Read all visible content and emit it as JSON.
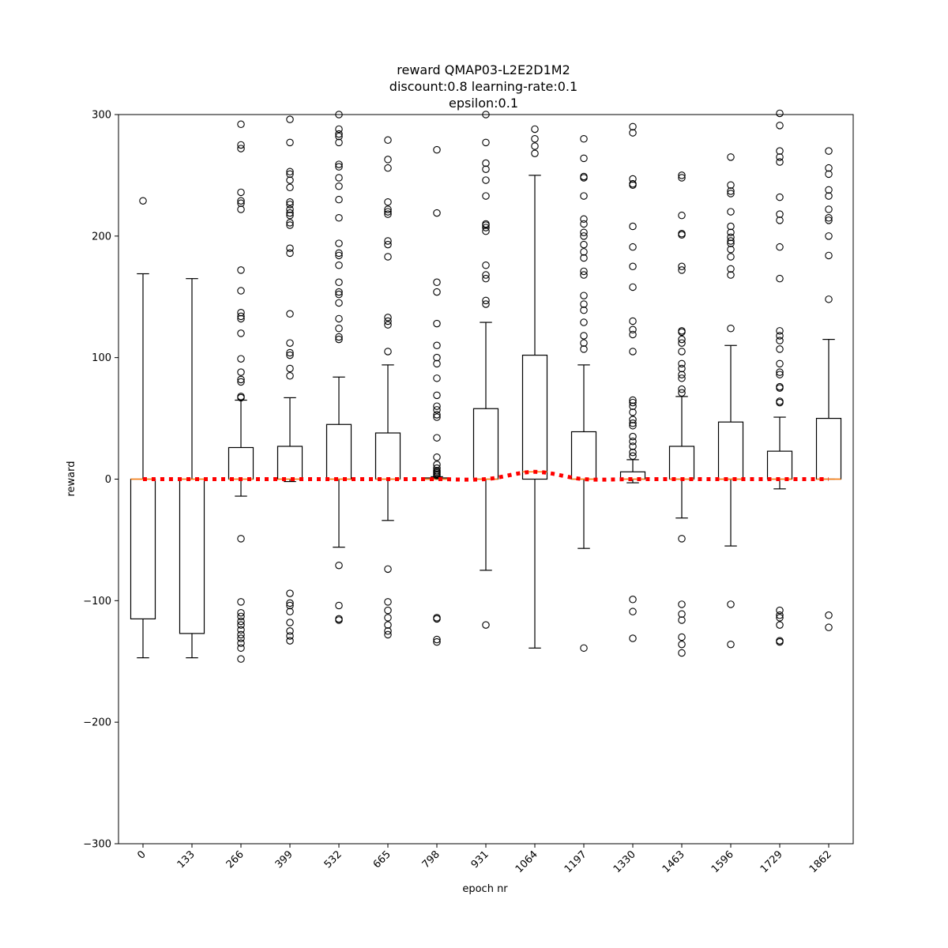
{
  "chart_data": {
    "type": "box",
    "title_lines": [
      "reward QMAP03-L2E2D1M2",
      "discount:0.8 learning-rate:0.1",
      "epsilon:0.1"
    ],
    "xlabel": "epoch nr",
    "ylabel": "reward",
    "ylim": [
      -300,
      300
    ],
    "yticks": [
      -300,
      -200,
      -100,
      0,
      100,
      200,
      300
    ],
    "ytick_labels": [
      "−300",
      "−200",
      "−100",
      "0",
      "100",
      "200",
      "300"
    ],
    "categories": [
      "0",
      "133",
      "266",
      "399",
      "532",
      "665",
      "798",
      "931",
      "1064",
      "1197",
      "1330",
      "1463",
      "1596",
      "1729",
      "1862"
    ],
    "boxes": [
      {
        "whisker_low": -147,
        "q1": -115,
        "median": 0,
        "q3": 0,
        "whisker_high": 169,
        "outliers": [
          229
        ]
      },
      {
        "whisker_low": -147,
        "q1": -127,
        "median": 0,
        "q3": 0,
        "whisker_high": 165,
        "outliers": []
      },
      {
        "whisker_low": -14,
        "q1": 0,
        "median": 0,
        "q3": 26,
        "whisker_high": 65,
        "outliers": [
          292,
          275,
          272,
          236,
          229,
          227,
          222,
          172,
          155,
          137,
          134,
          132,
          120,
          99,
          88,
          82,
          80,
          68,
          67,
          -49,
          -101,
          -110,
          -113,
          -117,
          -120,
          -124,
          -128,
          -131,
          -135,
          -139,
          -148
        ]
      },
      {
        "whisker_low": -2,
        "q1": 0,
        "median": 0,
        "q3": 27,
        "whisker_high": 67,
        "outliers": [
          296,
          277,
          253,
          251,
          246,
          240,
          228,
          226,
          222,
          219,
          217,
          211,
          209,
          190,
          186,
          136,
          112,
          104,
          102,
          91,
          85,
          -94,
          -102,
          -104,
          -109,
          -118,
          -125,
          -129,
          -133
        ]
      },
      {
        "whisker_low": -56,
        "q1": 0,
        "median": 0,
        "q3": 45,
        "whisker_high": 84,
        "outliers": [
          300,
          288,
          284,
          282,
          277,
          259,
          257,
          248,
          241,
          230,
          215,
          194,
          186,
          184,
          176,
          162,
          154,
          152,
          145,
          132,
          124,
          117,
          115,
          -71,
          -104,
          -115,
          -116
        ]
      },
      {
        "whisker_low": -34,
        "q1": 0,
        "median": 0,
        "q3": 38,
        "whisker_high": 94,
        "outliers": [
          279,
          263,
          256,
          228,
          222,
          220,
          218,
          196,
          193,
          183,
          133,
          130,
          127,
          105,
          -74,
          -101,
          -108,
          -114,
          -120,
          -125,
          -128
        ]
      },
      {
        "whisker_low": 0,
        "q1": 0,
        "median": 0,
        "q3": 1,
        "whisker_high": 2,
        "outliers": [
          271,
          219,
          162,
          154,
          128,
          110,
          100,
          95,
          83,
          69,
          60,
          57,
          53,
          51,
          34,
          18,
          12,
          9,
          7,
          6,
          5,
          4,
          3,
          -114,
          -115,
          -132,
          -134
        ]
      },
      {
        "whisker_low": -75,
        "q1": 0,
        "median": 0,
        "q3": 58,
        "whisker_high": 129,
        "outliers": [
          300,
          277,
          260,
          255,
          246,
          233,
          210,
          209,
          207,
          204,
          176,
          168,
          165,
          147,
          144,
          -120
        ]
      },
      {
        "whisker_low": -139,
        "q1": 0,
        "median": 6,
        "q3": 102,
        "whisker_high": 250,
        "outliers": [
          288,
          280,
          274,
          268
        ]
      },
      {
        "whisker_low": -57,
        "q1": 0,
        "median": 0,
        "q3": 39,
        "whisker_high": 94,
        "outliers": [
          280,
          264,
          249,
          248,
          233,
          214,
          210,
          203,
          200,
          193,
          187,
          182,
          171,
          168,
          151,
          144,
          139,
          129,
          118,
          112,
          107,
          -139
        ]
      },
      {
        "whisker_low": -3,
        "q1": 0,
        "median": 0,
        "q3": 6,
        "whisker_high": 16,
        "outliers": [
          290,
          285,
          247,
          243,
          242,
          208,
          191,
          175,
          158,
          130,
          123,
          119,
          105,
          65,
          63,
          60,
          55,
          49,
          46,
          44,
          35,
          31,
          27,
          22,
          19,
          -99,
          -109,
          -131
        ]
      },
      {
        "whisker_low": -32,
        "q1": 0,
        "median": 0,
        "q3": 27,
        "whisker_high": 68,
        "outliers": [
          250,
          248,
          217,
          202,
          201,
          175,
          172,
          122,
          121,
          115,
          112,
          105,
          95,
          91,
          86,
          83,
          74,
          71,
          -49,
          -103,
          -111,
          -116,
          -130,
          -136,
          -143
        ]
      },
      {
        "whisker_low": -55,
        "q1": 0,
        "median": 0,
        "q3": 47,
        "whisker_high": 110,
        "outliers": [
          265,
          242,
          237,
          235,
          220,
          208,
          203,
          199,
          196,
          194,
          189,
          183,
          173,
          168,
          124,
          -103,
          -136
        ]
      },
      {
        "whisker_low": -8,
        "q1": 0,
        "median": 0,
        "q3": 23,
        "whisker_high": 51,
        "outliers": [
          301,
          291,
          270,
          265,
          261,
          232,
          218,
          213,
          191,
          165,
          122,
          118,
          114,
          107,
          95,
          88,
          86,
          76,
          75,
          64,
          63,
          -108,
          -112,
          -114,
          -120,
          -133,
          -134
        ]
      },
      {
        "whisker_low": 0,
        "q1": 0,
        "median": 0,
        "q3": 50,
        "whisker_high": 115,
        "outliers": [
          270,
          256,
          251,
          238,
          233,
          222,
          215,
          213,
          200,
          184,
          148,
          -112,
          -122
        ]
      }
    ],
    "mean_line": {
      "style": "dotted",
      "color": "#ff0000",
      "values": [
        0,
        0,
        0,
        0,
        0,
        0,
        0,
        0,
        6,
        0,
        0,
        0,
        0,
        0,
        0
      ]
    },
    "colors": {
      "box": "#000000",
      "median": "#ff7f0e",
      "mean": "#ff0000",
      "outlier": "#000000"
    },
    "grid": false,
    "legend": "none"
  }
}
